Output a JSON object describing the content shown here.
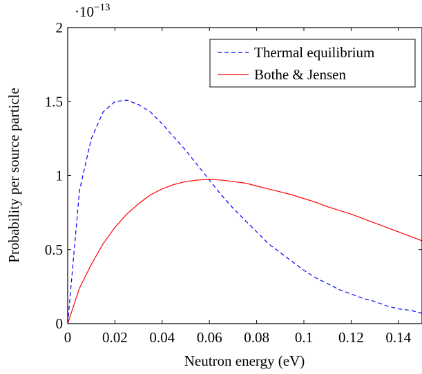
{
  "chart_data": {
    "type": "line",
    "title": "",
    "xlabel": "Neutron energy (eV)",
    "ylabel": "Probability per source particle",
    "y_multiplier": {
      "base": "·10",
      "exponent": "−13"
    },
    "xlim": [
      0,
      0.15
    ],
    "ylim": [
      0,
      2
    ],
    "x_ticks": [
      0,
      0.02,
      0.04,
      0.06,
      0.08,
      0.1,
      0.12,
      0.14
    ],
    "x_tick_labels": [
      "0",
      "0.02",
      "0.04",
      "0.06",
      "0.08",
      "0.1",
      "0.12",
      "0.14"
    ],
    "y_ticks": [
      0,
      0.5,
      1,
      1.5,
      2
    ],
    "y_tick_labels": [
      "0",
      "0.5",
      "1",
      "1.5",
      "2"
    ],
    "grid": false,
    "legend_position": "top-right",
    "series": [
      {
        "name": "Thermal equilibrium",
        "color": "#0000ff",
        "style": "dashed",
        "x": [
          0,
          0.005,
          0.01,
          0.015,
          0.02,
          0.025,
          0.03,
          0.035,
          0.04,
          0.045,
          0.05,
          0.055,
          0.06,
          0.065,
          0.07,
          0.075,
          0.08,
          0.085,
          0.09,
          0.095,
          0.1,
          0.105,
          0.11,
          0.115,
          0.12,
          0.125,
          0.13,
          0.135,
          0.14,
          0.145,
          0.15
        ],
        "values": [
          0,
          0.9,
          1.25,
          1.43,
          1.5,
          1.51,
          1.48,
          1.43,
          1.35,
          1.26,
          1.17,
          1.07,
          0.97,
          0.87,
          0.78,
          0.7,
          0.62,
          0.54,
          0.48,
          0.42,
          0.36,
          0.31,
          0.27,
          0.23,
          0.2,
          0.17,
          0.15,
          0.12,
          0.1,
          0.09,
          0.07
        ]
      },
      {
        "name": "Bothe & Jensen",
        "color": "#ff0000",
        "style": "solid",
        "x": [
          0,
          0.005,
          0.01,
          0.015,
          0.02,
          0.025,
          0.03,
          0.035,
          0.04,
          0.045,
          0.05,
          0.055,
          0.06,
          0.065,
          0.07,
          0.075,
          0.08,
          0.085,
          0.09,
          0.095,
          0.1,
          0.105,
          0.11,
          0.115,
          0.12,
          0.125,
          0.13,
          0.135,
          0.14,
          0.145,
          0.15
        ],
        "values": [
          0,
          0.24,
          0.4,
          0.54,
          0.65,
          0.74,
          0.81,
          0.87,
          0.91,
          0.94,
          0.96,
          0.97,
          0.975,
          0.97,
          0.96,
          0.95,
          0.93,
          0.91,
          0.89,
          0.87,
          0.845,
          0.82,
          0.79,
          0.765,
          0.74,
          0.71,
          0.68,
          0.65,
          0.62,
          0.59,
          0.56
        ]
      }
    ]
  }
}
